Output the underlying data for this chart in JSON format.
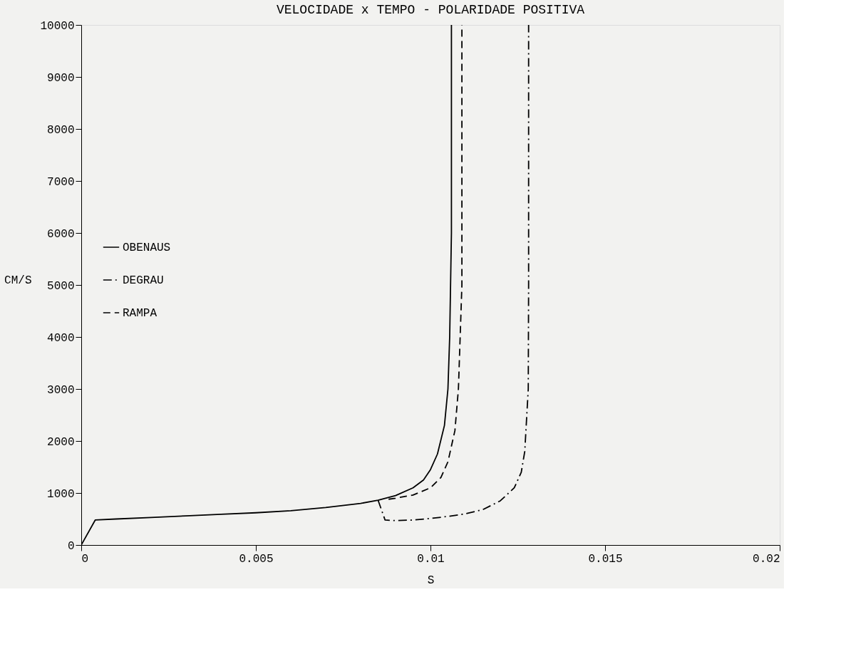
{
  "chart_data": {
    "type": "line",
    "title": "VELOCIDADE x TEMPO - POLARIDADE POSITIVA",
    "xlabel": "S",
    "ylabel": "CM/S",
    "xlim": [
      0,
      0.02
    ],
    "xticks": [
      0,
      0.005,
      0.01,
      0.015,
      0.02
    ],
    "ylim": [
      0,
      10000
    ],
    "yticks": [
      0,
      1000,
      2000,
      3000,
      4000,
      5000,
      6000,
      7000,
      8000,
      9000,
      10000
    ],
    "grid": false,
    "legend": "left",
    "marker": "none",
    "series": [
      {
        "name": "OBENAUS",
        "color": "#000000",
        "line_style": "solid",
        "x": [
          0,
          0.0004,
          0.001,
          0.002,
          0.003,
          0.004,
          0.005,
          0.006,
          0.007,
          0.008,
          0.0085,
          0.009,
          0.0095,
          0.0098,
          0.01,
          0.0102,
          0.0104,
          0.0105,
          0.01055,
          0.0106,
          0.0106
        ],
        "values": [
          0,
          480,
          500,
          530,
          560,
          590,
          620,
          660,
          720,
          800,
          860,
          950,
          1100,
          1250,
          1450,
          1750,
          2300,
          3000,
          4000,
          6000,
          10000
        ]
      },
      {
        "name": "DEGRAU",
        "color": "#000000",
        "line_style": "dashdot",
        "x": [
          0.0085,
          0.0087,
          0.009,
          0.0095,
          0.01,
          0.0105,
          0.011,
          0.0115,
          0.012,
          0.0124,
          0.0126,
          0.0127,
          0.0128,
          0.01281,
          0.01281
        ],
        "values": [
          860,
          480,
          470,
          480,
          510,
          550,
          600,
          680,
          850,
          1100,
          1400,
          1800,
          3000,
          5000,
          10000
        ]
      },
      {
        "name": "RAMPA",
        "color": "#000000",
        "line_style": "dashed",
        "x": [
          0.0088,
          0.009,
          0.0095,
          0.01,
          0.0103,
          0.0105,
          0.0107,
          0.0108,
          0.0109,
          0.0109
        ],
        "values": [
          880,
          900,
          960,
          1100,
          1300,
          1600,
          2200,
          3000,
          5000,
          10000
        ]
      }
    ]
  }
}
